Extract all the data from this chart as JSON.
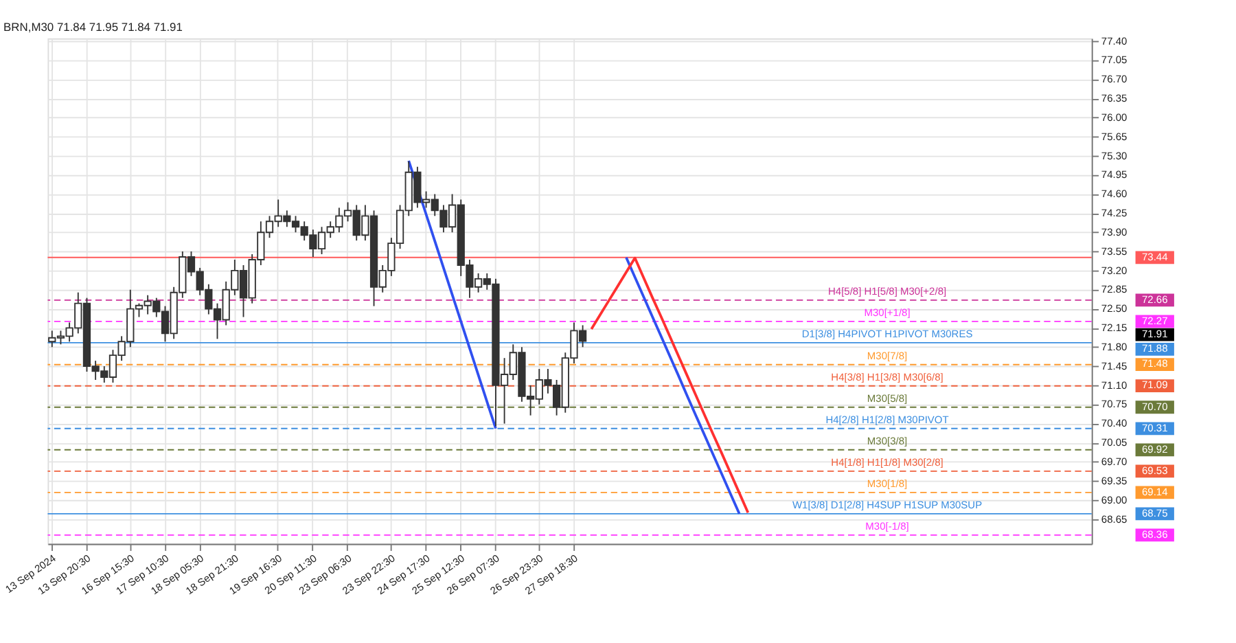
{
  "chart_data": {
    "type": "candlestick",
    "title": "BRN,M30 71.84 71.95 71.84 71.91",
    "categories": [
      "13 Sep 2024",
      null,
      null,
      null,
      "13 Sep 20:30",
      null,
      null,
      null,
      null,
      "16 Sep 15:30",
      null,
      null,
      null,
      "17 Sep 10:30",
      null,
      null,
      null,
      "18 Sep 05:30",
      null,
      null,
      null,
      "18 Sep 21:30",
      null,
      null,
      null,
      null,
      "19 Sep 16:30",
      null,
      null,
      null,
      "20 Sep 11:30",
      null,
      null,
      null,
      "23 Sep 06:30",
      null,
      null,
      null,
      null,
      "23 Sep 22:30",
      null,
      null,
      null,
      "24 Sep 17:30",
      null,
      null,
      null,
      "25 Sep 12:30",
      null,
      null,
      null,
      "26 Sep 07:30",
      null,
      null,
      null,
      null,
      "26 Sep 23:30",
      null,
      null,
      null,
      "27 Sep 18:30",
      null,
      null,
      null,
      null,
      null,
      null,
      null,
      null,
      null,
      null,
      null,
      null,
      null,
      null,
      null,
      null,
      null,
      null,
      null,
      null,
      null,
      null,
      null,
      null,
      null,
      null,
      null,
      null,
      null,
      null,
      null,
      null,
      null,
      null,
      null,
      null,
      null,
      null,
      null,
      null,
      null,
      null,
      null,
      null,
      null,
      null,
      null,
      null,
      null,
      null,
      null,
      null,
      null,
      null,
      null,
      null,
      null,
      null,
      null
    ],
    "color": "#333333",
    "ohlc": [
      [
        71.9,
        72.1,
        71.8,
        71.97
      ],
      [
        71.97,
        72.1,
        71.85,
        72.0
      ],
      [
        72.0,
        72.25,
        71.9,
        72.15
      ],
      [
        72.15,
        72.8,
        72.05,
        72.6
      ],
      [
        72.6,
        72.7,
        71.35,
        71.45
      ],
      [
        71.45,
        71.55,
        71.2,
        71.36
      ],
      [
        71.36,
        71.45,
        71.15,
        71.25
      ],
      [
        71.25,
        71.75,
        71.15,
        71.65
      ],
      [
        71.65,
        72.0,
        71.55,
        71.9
      ],
      [
        71.9,
        72.85,
        71.8,
        72.5
      ],
      [
        72.5,
        72.6,
        72.35,
        72.56
      ],
      [
        72.56,
        72.75,
        72.4,
        72.64
      ],
      [
        72.64,
        72.7,
        72.35,
        72.45
      ],
      [
        72.45,
        72.55,
        71.9,
        72.05
      ],
      [
        72.05,
        72.9,
        71.95,
        72.8
      ],
      [
        72.8,
        73.55,
        72.7,
        73.45
      ],
      [
        73.45,
        73.55,
        73.1,
        73.18
      ],
      [
        73.18,
        73.25,
        72.75,
        72.85
      ],
      [
        72.85,
        72.95,
        72.4,
        72.5
      ],
      [
        72.5,
        72.6,
        71.95,
        72.3
      ],
      [
        72.3,
        73.0,
        72.2,
        72.85
      ],
      [
        72.85,
        73.4,
        72.75,
        73.2
      ],
      [
        73.2,
        73.3,
        72.35,
        72.7
      ],
      [
        72.7,
        73.5,
        72.6,
        73.4
      ],
      [
        73.4,
        74.1,
        73.3,
        73.9
      ],
      [
        73.9,
        74.2,
        73.8,
        74.1
      ],
      [
        74.1,
        74.5,
        74.0,
        74.2
      ],
      [
        74.2,
        74.3,
        74.0,
        74.1
      ],
      [
        74.1,
        74.2,
        73.9,
        74.0
      ],
      [
        74.0,
        74.1,
        73.75,
        73.85
      ],
      [
        73.85,
        73.95,
        73.45,
        73.6
      ],
      [
        73.6,
        74.0,
        73.5,
        73.9
      ],
      [
        73.9,
        74.1,
        73.8,
        74.0
      ],
      [
        74.0,
        74.35,
        73.9,
        74.2
      ],
      [
        74.2,
        74.45,
        74.1,
        74.3
      ],
      [
        74.3,
        74.4,
        73.75,
        73.85
      ],
      [
        73.85,
        74.4,
        73.75,
        74.2
      ],
      [
        74.2,
        74.3,
        72.55,
        72.9
      ],
      [
        72.9,
        73.3,
        72.8,
        73.2
      ],
      [
        73.2,
        73.8,
        73.1,
        73.7
      ],
      [
        73.7,
        74.4,
        73.6,
        74.3
      ],
      [
        74.3,
        75.2,
        74.2,
        75.0
      ],
      [
        75.0,
        75.1,
        74.35,
        74.45
      ],
      [
        74.45,
        74.65,
        74.35,
        74.5
      ],
      [
        74.5,
        74.6,
        74.2,
        74.3
      ],
      [
        74.3,
        74.4,
        73.9,
        74.0
      ],
      [
        74.0,
        74.6,
        73.9,
        74.4
      ],
      [
        74.4,
        74.5,
        73.1,
        73.3
      ],
      [
        73.3,
        73.4,
        72.7,
        72.9
      ],
      [
        72.9,
        73.15,
        72.8,
        73.05
      ],
      [
        73.05,
        73.15,
        72.85,
        72.95
      ],
      [
        72.95,
        73.05,
        70.35,
        71.1
      ],
      [
        71.1,
        71.6,
        70.4,
        71.3
      ],
      [
        71.3,
        71.85,
        71.2,
        71.7
      ],
      [
        71.7,
        71.8,
        70.8,
        70.9
      ],
      [
        70.9,
        71.1,
        70.55,
        70.85
      ],
      [
        70.85,
        71.4,
        70.75,
        71.2
      ],
      [
        71.2,
        71.4,
        70.95,
        71.1
      ],
      [
        71.1,
        71.2,
        70.55,
        70.7
      ],
      [
        70.7,
        71.7,
        70.6,
        71.6
      ],
      [
        71.6,
        72.25,
        71.5,
        72.1
      ],
      [
        72.1,
        72.2,
        71.8,
        71.91
      ],
      null,
      null,
      null,
      null,
      null,
      null,
      null,
      null,
      null,
      null,
      null,
      null,
      null,
      null,
      null,
      null,
      null,
      null,
      null,
      null,
      null,
      null,
      null,
      null,
      null,
      null,
      null,
      null,
      null,
      null,
      null,
      null,
      null,
      null,
      null,
      null,
      null,
      null,
      null,
      null,
      null,
      null,
      null,
      null,
      null,
      null,
      null,
      null,
      null,
      null,
      null,
      null,
      null,
      null,
      null,
      null,
      null,
      null
    ],
    "series": [
      {
        "type": "line",
        "color": "#3050f0",
        "values": [
          null,
          null,
          null,
          null,
          null,
          null,
          null,
          null,
          null,
          null,
          null,
          null,
          null,
          null,
          null,
          null,
          null,
          null,
          null,
          null,
          null,
          null,
          null,
          null,
          null,
          null,
          null,
          null,
          null,
          null,
          null,
          null,
          null,
          null,
          null,
          null,
          null,
          null,
          null,
          null,
          null,
          75.21,
          74.72,
          74.23,
          73.74,
          73.25,
          72.76,
          72.27,
          71.78,
          71.29,
          70.8,
          70.31,
          null,
          null,
          null,
          null,
          null,
          null,
          null,
          null,
          null,
          null,
          null,
          null,
          null,
          null,
          null,
          null,
          null,
          null,
          null,
          null,
          null,
          null,
          null,
          null,
          null,
          null,
          null,
          null,
          null,
          null,
          null,
          null,
          null,
          null,
          null,
          null,
          null,
          null,
          null,
          null,
          null,
          null,
          null,
          null,
          null,
          null,
          null,
          null,
          null,
          null,
          null,
          null,
          null,
          null,
          null,
          null,
          null,
          null,
          null,
          null,
          null,
          null,
          null,
          null,
          null,
          null,
          null,
          null
        ]
      },
      {
        "type": "line",
        "color": "#3050f0",
        "values": [
          null,
          null,
          null,
          null,
          null,
          null,
          null,
          null,
          null,
          null,
          null,
          null,
          null,
          null,
          null,
          null,
          null,
          null,
          null,
          null,
          null,
          null,
          null,
          null,
          null,
          null,
          null,
          null,
          null,
          null,
          null,
          null,
          null,
          null,
          null,
          null,
          null,
          null,
          null,
          null,
          null,
          null,
          null,
          null,
          null,
          null,
          null,
          null,
          null,
          null,
          null,
          null,
          null,
          null,
          null,
          null,
          null,
          null,
          null,
          null,
          null,
          null,
          null,
          null,
          null,
          null,
          73.44,
          73.08,
          72.72,
          72.36,
          72.0,
          71.64,
          71.28,
          70.91,
          70.55,
          70.19,
          69.83,
          69.47,
          69.11,
          68.75,
          null,
          null,
          null,
          null,
          null,
          null,
          null,
          null,
          null,
          null,
          null,
          null,
          null,
          null,
          null,
          null,
          null,
          null,
          null,
          null,
          null,
          null,
          null,
          null,
          null,
          null,
          null,
          null,
          null,
          null,
          null,
          null,
          null,
          null,
          null,
          null,
          null,
          null,
          null,
          null
        ]
      },
      {
        "type": "line",
        "color": "#ff3030",
        "values": [
          null,
          null,
          null,
          null,
          null,
          null,
          null,
          null,
          null,
          null,
          null,
          null,
          null,
          null,
          null,
          null,
          null,
          null,
          null,
          null,
          null,
          null,
          null,
          null,
          null,
          null,
          null,
          null,
          null,
          null,
          null,
          null,
          null,
          null,
          null,
          null,
          null,
          null,
          null,
          null,
          null,
          null,
          null,
          null,
          null,
          null,
          null,
          null,
          null,
          null,
          null,
          null,
          null,
          null,
          null,
          null,
          null,
          null,
          null,
          null,
          null,
          null,
          72.13,
          72.39,
          72.65,
          72.91,
          73.17,
          73.43,
          73.07,
          72.71,
          72.36,
          72.0,
          71.64,
          71.28,
          70.92,
          70.56,
          70.2,
          69.85,
          69.49,
          69.13,
          68.77,
          null,
          null,
          null,
          null,
          null,
          null,
          null,
          null,
          null,
          null,
          null,
          null,
          null,
          null,
          null,
          null,
          null,
          null,
          null,
          null,
          null,
          null,
          null,
          null,
          null,
          null,
          null,
          null,
          null,
          null,
          null,
          null,
          null,
          null,
          null,
          null,
          null,
          null,
          null
        ]
      }
    ],
    "ylim": [
      68.2,
      77.45
    ],
    "yticks": [
      {
        "value": 68.65,
        "label": "68.65"
      },
      {
        "value": 69.0,
        "label": "69.00"
      },
      {
        "value": 69.35,
        "label": "69.35"
      },
      {
        "value": 69.7,
        "label": "69.70"
      },
      {
        "value": 70.05,
        "label": "70.05"
      },
      {
        "value": 70.4,
        "label": "70.40"
      },
      {
        "value": 70.75,
        "label": "70.75"
      },
      {
        "value": 71.1,
        "label": "71.10"
      },
      {
        "value": 71.45,
        "label": "71.45"
      },
      {
        "value": 71.8,
        "label": "71.80"
      },
      {
        "value": 72.15,
        "label": "72.15"
      },
      {
        "value": 72.5,
        "label": "72.50"
      },
      {
        "value": 72.85,
        "label": "72.85"
      },
      {
        "value": 73.2,
        "label": "73.20"
      },
      {
        "value": 73.55,
        "label": "73.55"
      },
      {
        "value": 73.9,
        "label": "73.90"
      },
      {
        "value": 74.25,
        "label": "74.25"
      },
      {
        "value": 74.6,
        "label": "74.60"
      },
      {
        "value": 74.95,
        "label": "74.95"
      },
      {
        "value": 75.3,
        "label": "75.30"
      },
      {
        "value": 75.65,
        "label": "75.65"
      },
      {
        "value": 76.0,
        "label": "76.00"
      },
      {
        "value": 76.35,
        "label": "76.35"
      },
      {
        "value": 76.7,
        "label": "76.70"
      },
      {
        "value": 77.05,
        "label": "77.05"
      },
      {
        "value": 77.4,
        "label": "77.40"
      }
    ],
    "grid": true,
    "ref_lines": [
      {
        "axis": "y",
        "value": 73.44,
        "label": null,
        "color": "#ff5a5a",
        "line_style": "solid"
      },
      {
        "axis": "y",
        "value": 72.66,
        "label": "H4[5/8] H1[5/8] M30[+2/8]",
        "color": "#cc3399",
        "line_style": "dashed"
      },
      {
        "axis": "y",
        "value": 72.27,
        "label": "M30[+1/8]",
        "color": "#ff33ff",
        "line_style": "dashed"
      },
      {
        "axis": "y",
        "value": 71.88,
        "label": "D1[3/8] H4PIVOT H1PIVOT M30RES",
        "color": "#3d8fe0",
        "line_style": "solid"
      },
      {
        "axis": "y",
        "value": 71.48,
        "label": "M30[7/8]",
        "color": "#ff9a2e",
        "line_style": "dashed"
      },
      {
        "axis": "y",
        "value": 71.09,
        "label": "H4[3/8] H1[3/8] M30[6/8]",
        "color": "#f0603c",
        "line_style": "dashed"
      },
      {
        "axis": "y",
        "value": 70.7,
        "label": "M30[5/8]",
        "color": "#6b7a3a",
        "line_style": "dashed"
      },
      {
        "axis": "y",
        "value": 70.31,
        "label": "H4[2/8] H1[2/8] M30PIVOT",
        "color": "#3d8fe0",
        "line_style": "dashed"
      },
      {
        "axis": "y",
        "value": 69.92,
        "label": "M30[3/8]",
        "color": "#6b7a3a",
        "line_style": "dashed"
      },
      {
        "axis": "y",
        "value": 69.53,
        "label": "H4[1/8] H1[1/8] M30[2/8]",
        "color": "#f0603c",
        "line_style": "dashed"
      },
      {
        "axis": "y",
        "value": 69.14,
        "label": "M30[1/8]",
        "color": "#ff9a2e",
        "line_style": "dashed"
      },
      {
        "axis": "y",
        "value": 68.75,
        "label": "W1[3/8] D1[2/8] H4SUP H1SUP M30SUP",
        "color": "#3d8fe0",
        "line_style": "solid"
      },
      {
        "axis": "y",
        "value": 68.36,
        "label": "M30[-1/8]",
        "color": "#ff33ff",
        "line_style": "dashed"
      }
    ],
    "annotations": [
      "73.44",
      "72.66",
      "72.27",
      "71.88",
      "71.48",
      "71.09",
      "70.70",
      "70.31",
      "69.92",
      "69.53",
      "69.14",
      "68.75",
      "68.36",
      "71.91"
    ]
  }
}
